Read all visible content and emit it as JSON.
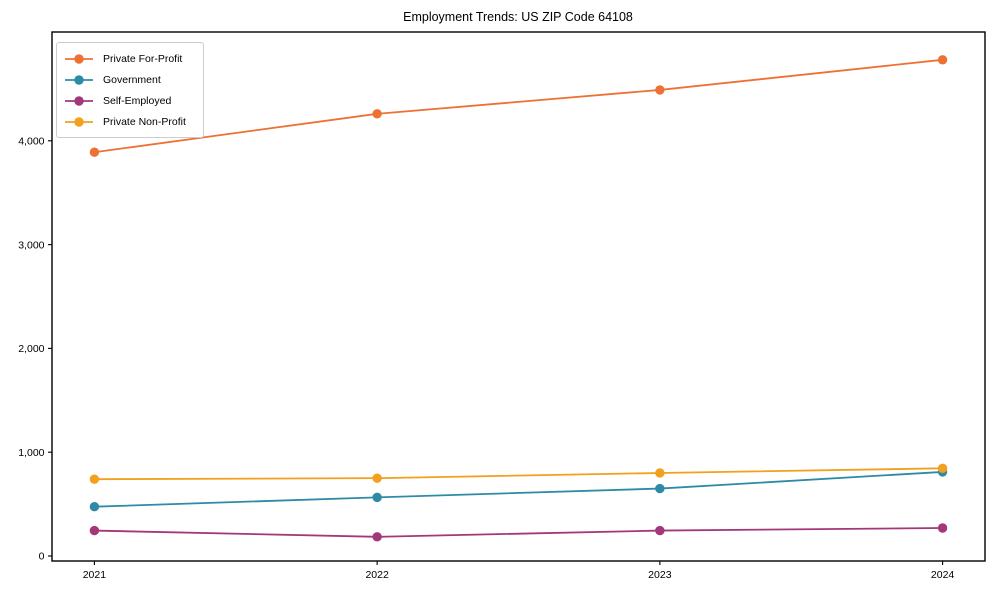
{
  "page": {
    "background_color": "#ffffff",
    "axis_color": "#000000",
    "text_color": "#000000",
    "legend_border_color": "#cccccc"
  },
  "chart_data": {
    "type": "line",
    "title": "Employment Trends: US ZIP Code 64108",
    "xlabel": "",
    "ylabel": "",
    "categories": [
      "2021",
      "2022",
      "2023",
      "2024"
    ],
    "series": [
      {
        "name": "Private For-Profit",
        "color": "#ED7134",
        "values": [
          3890,
          4260,
          4490,
          4780
        ]
      },
      {
        "name": "Government",
        "color": "#2E8BA5",
        "values": [
          475,
          565,
          650,
          810
        ]
      },
      {
        "name": "Self-Employed",
        "color": "#A33779",
        "values": [
          245,
          185,
          245,
          270
        ]
      },
      {
        "name": "Private Non-Profit",
        "color": "#F2A01D",
        "values": [
          740,
          750,
          800,
          845
        ]
      }
    ],
    "yticks": {
      "values": [
        0,
        1000,
        2000,
        3000,
        4000
      ],
      "labels": [
        "0",
        "1,000",
        "2,000",
        "3,000",
        "4,000"
      ]
    },
    "xlim": [
      -0.15,
      3.15
    ],
    "ylim": [
      -48,
      5048
    ],
    "grid": false,
    "legend_position": "upper left",
    "marker": "circle",
    "line_width": 1.8,
    "marker_radius": 4.7
  }
}
